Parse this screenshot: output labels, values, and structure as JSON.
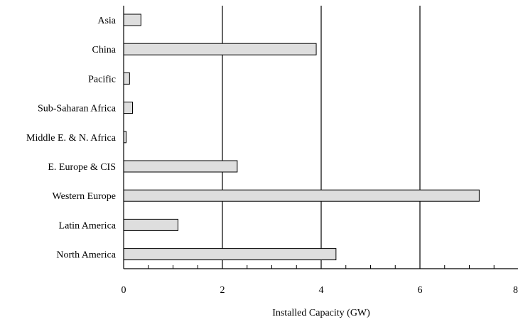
{
  "chart_data": {
    "type": "bar",
    "orientation": "horizontal",
    "categories": [
      "Asia",
      "China",
      "Pacific",
      "Sub-Saharan Africa",
      "Middle E. & N. Africa",
      "E. Europe & CIS",
      "Western Europe",
      "Latin America",
      "North America"
    ],
    "values": [
      0.35,
      3.9,
      0.12,
      0.18,
      0.05,
      2.3,
      7.2,
      1.1,
      4.3
    ],
    "xlabel": "Installed Capacity (GW)",
    "xlim": [
      0,
      8
    ],
    "xticks": [
      "0",
      "2",
      "4",
      "6",
      "8"
    ],
    "grid": "vertical major gridlines",
    "colors": {
      "bar_fill": "#dedede",
      "bar_stroke": "#000000"
    }
  }
}
